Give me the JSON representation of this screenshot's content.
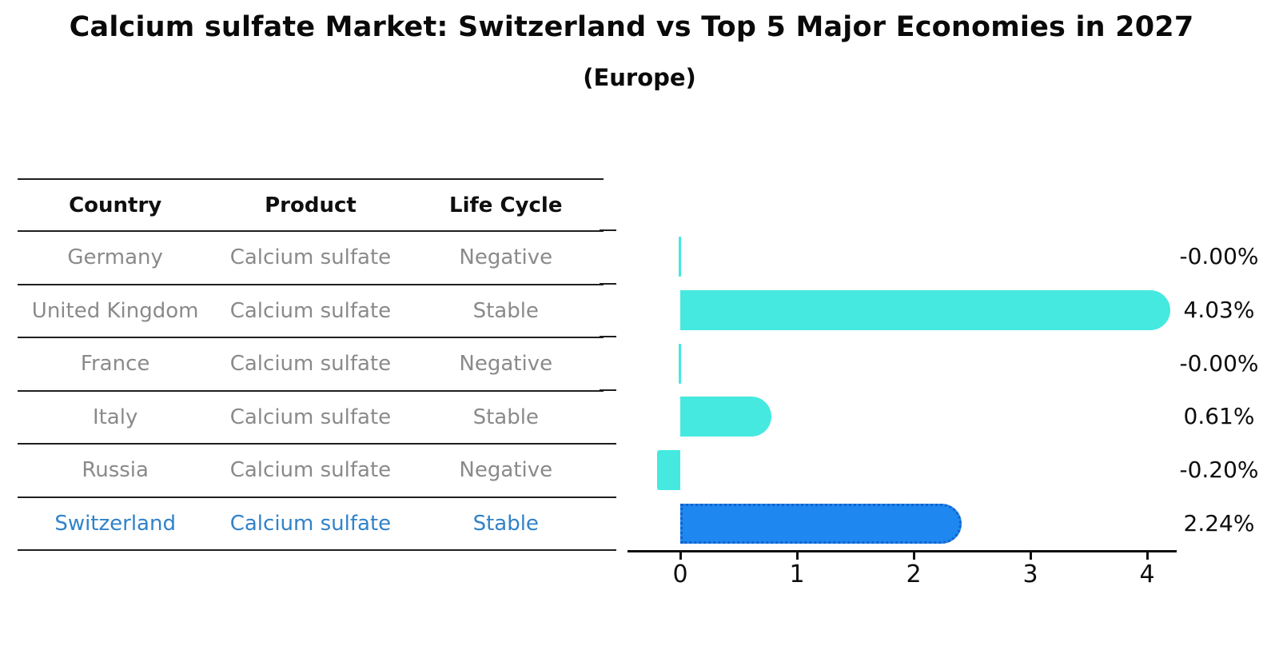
{
  "title": "Calcium sulfate Market: Switzerland vs Top 5 Major Economies in 2027",
  "subtitle": "(Europe)",
  "table": {
    "headers": {
      "country": "Country",
      "product": "Product",
      "life_cycle": "Life Cycle"
    },
    "rows": [
      {
        "country": "Germany",
        "product": "Calcium sulfate",
        "life_cycle": "Negative",
        "highlight": false
      },
      {
        "country": "United Kingdom",
        "product": "Calcium sulfate",
        "life_cycle": "Stable",
        "highlight": false
      },
      {
        "country": "France",
        "product": "Calcium sulfate",
        "life_cycle": "Negative",
        "highlight": false
      },
      {
        "country": "Italy",
        "product": "Calcium sulfate",
        "life_cycle": "Stable",
        "highlight": false
      },
      {
        "country": "Russia",
        "product": "Calcium sulfate",
        "life_cycle": "Negative",
        "highlight": false
      },
      {
        "country": "Switzerland",
        "product": "Calcium sulfate",
        "life_cycle": "Stable",
        "highlight": true
      }
    ]
  },
  "chart_data": {
    "type": "bar",
    "orientation": "horizontal",
    "categories": [
      "Germany",
      "United Kingdom",
      "France",
      "Italy",
      "Russia",
      "Switzerland"
    ],
    "values": [
      -0.0,
      4.03,
      -0.0,
      0.61,
      -0.2,
      2.24
    ],
    "value_labels": [
      "-0.00%",
      "4.03%",
      "-0.00%",
      "0.61%",
      "-0.20%",
      "2.24%"
    ],
    "x_ticks": [
      "0",
      "1",
      "2",
      "3",
      "4"
    ],
    "xlim": [
      -0.45,
      4.25
    ],
    "grid": false,
    "legend": false,
    "highlight_index": 5,
    "bar_color": "#45E9E0",
    "highlight_bar_color": "#1E87F0",
    "highlight_border_color": "#1362CC"
  },
  "colors": {
    "accent_text": "#3182C8",
    "muted_text": "#8A8A8A",
    "line": "#1F1F1F"
  }
}
